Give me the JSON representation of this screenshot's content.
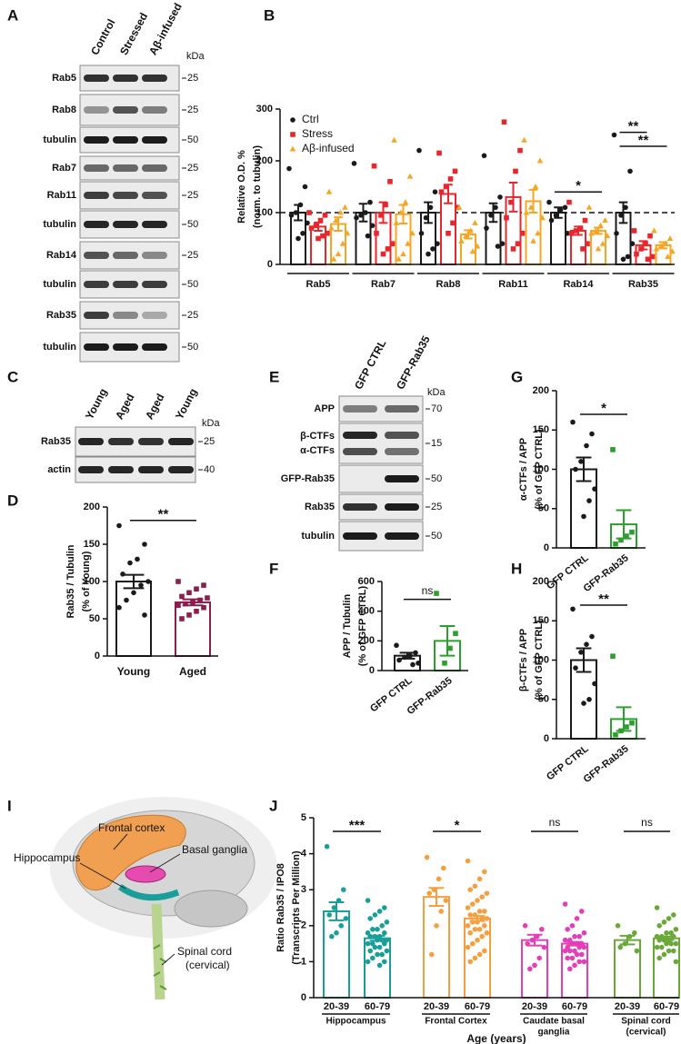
{
  "chart_data": [
    {
      "type": "bar",
      "panel": "B",
      "ylabel": [
        "Relative O.D. %",
        "(norm. to tubulin)"
      ],
      "categories": [
        "Rab5",
        "Rab7",
        "Rab8",
        "Rab11",
        "Rab14",
        "Rab35"
      ],
      "ylim": [
        0,
        300
      ],
      "yticks": [
        0,
        100,
        200,
        300
      ],
      "reference_line": 100,
      "legend": "top-left",
      "series": [
        {
          "name": "Ctrl",
          "color": "#1a1a1a",
          "marker": "circle",
          "values": [
            100,
            100,
            100,
            100,
            100,
            100
          ],
          "errors": [
            15,
            17,
            20,
            18,
            10,
            20
          ],
          "points": [
            [
              185,
              150,
              115,
              100,
              95,
              80,
              60,
              50
            ],
            [
              195,
              120,
              100,
              95,
              90,
              75,
              55
            ],
            [
              220,
              140,
              110,
              90,
              60,
              40,
              30,
              20
            ],
            [
              210,
              130,
              110,
              95,
              70,
              40,
              35
            ],
            [
              120,
              110,
              105,
              95,
              85,
              60
            ],
            [
              250,
              180,
              110,
              95,
              60,
              40,
              15,
              10
            ]
          ]
        },
        {
          "name": "Stress",
          "color": "#e8262d",
          "marker": "square",
          "values": [
            73,
            100,
            136,
            130,
            65,
            37
          ],
          "errors": [
            8,
            20,
            18,
            28,
            8,
            8
          ],
          "points": [
            [
              100,
              95,
              85,
              75,
              70,
              60,
              55,
              50
            ],
            [
              190,
              160,
              115,
              95,
              60,
              40,
              30,
              20
            ],
            [
              215,
              180,
              165,
              150,
              140,
              110,
              80,
              60
            ],
            [
              275,
              220,
              180,
              120,
              90,
              60,
              40,
              30
            ],
            [
              120,
              85,
              70,
              65,
              60,
              40,
              30
            ],
            [
              65,
              55,
              40,
              30,
              20,
              15,
              10
            ]
          ]
        },
        {
          "name": "Aβ-infused",
          "color": "#f5a623",
          "marker": "triangle",
          "values": [
            78,
            97,
            58,
            122,
            65,
            37
          ],
          "errors": [
            13,
            18,
            8,
            22,
            6,
            6
          ],
          "points": [
            [
              140,
              110,
              100,
              85,
              70,
              60,
              40,
              20,
              10
            ],
            [
              240,
              170,
              120,
              100,
              80,
              60,
              40,
              20,
              10
            ],
            [
              110,
              80,
              65,
              55,
              45,
              35,
              25
            ],
            [
              240,
              200,
              150,
              110,
              100,
              90,
              60,
              45
            ],
            [
              110,
              85,
              75,
              65,
              60,
              55,
              40,
              30
            ],
            [
              65,
              50,
              40,
              35,
              30,
              25,
              15
            ]
          ]
        }
      ],
      "significance": [
        {
          "category": 4,
          "pair": [
            0,
            2
          ],
          "label": "*"
        },
        {
          "category": 5,
          "pair": [
            0,
            1
          ],
          "label": "**"
        },
        {
          "category": 5,
          "pair": [
            0,
            2
          ],
          "label": "**"
        }
      ]
    },
    {
      "type": "bar",
      "panel": "D",
      "ylabel": [
        "Rab35 / Tubulin",
        "(% of Young)"
      ],
      "categories": [
        "Young",
        "Aged"
      ],
      "colors": [
        "#1a1a1a",
        "#8c1d4f"
      ],
      "markers": [
        "circle",
        "square"
      ],
      "ylim": [
        0,
        200
      ],
      "yticks": [
        0,
        50,
        100,
        150,
        200
      ],
      "values": [
        100,
        72
      ],
      "errors": [
        9,
        4
      ],
      "points": [
        [
          175,
          150,
          130,
          125,
          110,
          100,
          95,
          85,
          75,
          65,
          55
        ],
        [
          100,
          95,
          90,
          85,
          80,
          78,
          75,
          72,
          70,
          68,
          65,
          60,
          55,
          50
        ]
      ],
      "significance": [
        {
          "pair": [
            0,
            1
          ],
          "label": "**"
        }
      ]
    },
    {
      "type": "bar",
      "panel": "F",
      "ylabel": [
        "APP / Tubulin",
        "(% of GFP CTRL)"
      ],
      "categories": [
        "GFP CTRL",
        "GFP-Rab35"
      ],
      "colors": [
        "#1a1a1a",
        "#2ca02c"
      ],
      "markers": [
        "circle",
        "square"
      ],
      "ylim": [
        0,
        600
      ],
      "yticks": [
        0,
        200,
        400,
        600
      ],
      "values": [
        100,
        200
      ],
      "errors": [
        20,
        100
      ],
      "points": [
        [
          170,
          120,
          100,
          90,
          70,
          50,
          40
        ],
        [
          520,
          250,
          150,
          50
        ]
      ],
      "significance": [
        {
          "pair": [
            0,
            1
          ],
          "label": "ns"
        }
      ]
    },
    {
      "type": "bar",
      "panel": "G",
      "ylabel": [
        "α-CTFs / APP",
        "(% of GFP CTRL)"
      ],
      "categories": [
        "GFP CTRL",
        "GFP-Rab35"
      ],
      "colors": [
        "#1a1a1a",
        "#2ca02c"
      ],
      "markers": [
        "circle",
        "square"
      ],
      "ylim": [
        0,
        200
      ],
      "yticks": [
        0,
        50,
        100,
        150,
        200
      ],
      "values": [
        100,
        30
      ],
      "errors": [
        15,
        18
      ],
      "points": [
        [
          160,
          145,
          130,
          110,
          100,
          75,
          60,
          40
        ],
        [
          125,
          20,
          15,
          10,
          5
        ]
      ],
      "significance": [
        {
          "pair": [
            0,
            1
          ],
          "label": "*"
        }
      ]
    },
    {
      "type": "bar",
      "panel": "H",
      "ylabel": [
        "β-CTFs / APP",
        "(% of GFP CTRL)"
      ],
      "categories": [
        "GFP CTRL",
        "GFP-Rab35"
      ],
      "colors": [
        "#1a1a1a",
        "#2ca02c"
      ],
      "markers": [
        "circle",
        "square"
      ],
      "ylim": [
        0,
        200
      ],
      "yticks": [
        0,
        50,
        100,
        150,
        200
      ],
      "values": [
        100,
        25
      ],
      "errors": [
        15,
        15
      ],
      "points": [
        [
          165,
          130,
          120,
          110,
          90,
          70,
          50,
          45
        ],
        [
          105,
          20,
          15,
          10,
          5
        ]
      ],
      "significance": [
        {
          "pair": [
            0,
            1
          ],
          "label": "**"
        }
      ]
    },
    {
      "type": "bar",
      "panel": "J",
      "ylabel": [
        "Ratio Rab35 / IPO8",
        "(Transcripts Per Million)"
      ],
      "xlabel": "Age (years)",
      "categories": [
        [
          "Hippocampus"
        ],
        [
          "Frontal Cortex"
        ],
        [
          "Caudate basal",
          "ganglia"
        ],
        [
          "Spinal cord",
          "(cervical)"
        ]
      ],
      "subcategories": [
        "20-39",
        "60-79"
      ],
      "colors": [
        "#1a9e9a",
        "#f5a040",
        "#e23fb8",
        "#6aa83a"
      ],
      "markers": [
        "circle",
        "circle",
        "circle",
        "circle"
      ],
      "ylim": [
        0,
        5
      ],
      "yticks": [
        0,
        1,
        2,
        3,
        4,
        5
      ],
      "series": [
        {
          "values": [
            2.4,
            2.8,
            1.6,
            1.6
          ],
          "errors": [
            0.25,
            0.25,
            0.15,
            0.12
          ],
          "points": [
            [
              4.2,
              3.0,
              2.7,
              2.5,
              2.3,
              2.2,
              2.0,
              1.8,
              1.7
            ],
            [
              3.9,
              3.6,
              3.3,
              3.0,
              2.9,
              2.7,
              2.4,
              2.0,
              1.2
            ],
            [
              2.0,
              1.9,
              1.7,
              1.6,
              1.5,
              1.4,
              1.1,
              0.9,
              0.8
            ],
            [
              2.0,
              1.8,
              1.7,
              1.5,
              1.4,
              1.3
            ]
          ]
        },
        {
          "values": [
            1.65,
            2.2,
            1.5,
            1.65
          ],
          "errors": [
            0.07,
            0.07,
            0.05,
            0.05
          ],
          "points": [
            [
              2.7,
              2.5,
              2.4,
              2.3,
              2.2,
              2.1,
              2.0,
              1.9,
              1.9,
              1.8,
              1.8,
              1.7,
              1.7,
              1.7,
              1.6,
              1.6,
              1.6,
              1.5,
              1.5,
              1.5,
              1.4,
              1.4,
              1.3,
              1.3,
              1.2,
              1.2,
              1.1,
              1.0,
              1.0,
              0.9
            ],
            [
              3.8,
              3.5,
              3.3,
              3.1,
              3.0,
              2.9,
              2.8,
              2.7,
              2.6,
              2.5,
              2.4,
              2.4,
              2.3,
              2.3,
              2.2,
              2.2,
              2.1,
              2.1,
              2.0,
              2.0,
              1.9,
              1.9,
              1.8,
              1.8,
              1.7,
              1.6,
              1.5,
              1.4,
              1.3,
              1.2,
              1.1,
              1.0
            ],
            [
              2.6,
              2.4,
              2.2,
              2.0,
              1.9,
              1.8,
              1.7,
              1.7,
              1.6,
              1.6,
              1.5,
              1.5,
              1.5,
              1.4,
              1.4,
              1.4,
              1.3,
              1.3,
              1.3,
              1.2,
              1.2,
              1.1,
              1.1,
              1.0,
              1.0,
              0.9,
              0.8
            ],
            [
              2.5,
              2.3,
              2.2,
              2.1,
              2.0,
              1.9,
              1.8,
              1.8,
              1.7,
              1.7,
              1.7,
              1.6,
              1.6,
              1.6,
              1.5,
              1.5,
              1.5,
              1.4,
              1.4,
              1.3,
              1.3,
              1.2,
              1.1,
              1.0
            ]
          ]
        }
      ],
      "significance": [
        {
          "category": 0,
          "pair": [
            0,
            1
          ],
          "label": "***"
        },
        {
          "category": 1,
          "pair": [
            0,
            1
          ],
          "label": "*"
        },
        {
          "category": 2,
          "pair": [
            0,
            1
          ],
          "label": "ns"
        },
        {
          "category": 3,
          "pair": [
            0,
            1
          ],
          "label": "ns"
        }
      ]
    }
  ],
  "blots": [
    {
      "panel": "A",
      "lanes": [
        "Control",
        "Stressed",
        "Aβ-infused"
      ],
      "unit": "kDa",
      "rows": [
        {
          "label": "Rab5",
          "marker": 25
        },
        {
          "label": "Rab8",
          "marker": 25
        },
        {
          "label": "tubulin",
          "marker": 50
        },
        {
          "label": "Rab7",
          "marker": 25
        },
        {
          "label": "Rab11",
          "marker": 25
        },
        {
          "label": "tubulin",
          "marker": 50
        },
        {
          "label": "Rab14",
          "marker": 25
        },
        {
          "label": "tubulin",
          "marker": 50
        },
        {
          "label": "Rab35",
          "marker": 25
        },
        {
          "label": "tubulin",
          "marker": 50
        }
      ]
    },
    {
      "panel": "C",
      "lanes": [
        "Young",
        "Aged",
        "Aged",
        "Young"
      ],
      "unit": "kDa",
      "rows": [
        {
          "label": "Rab35",
          "marker": 25
        },
        {
          "label": "actin",
          "marker": 40
        }
      ]
    },
    {
      "panel": "E",
      "lanes": [
        "GFP CTRL",
        "GFP-Rab35"
      ],
      "unit": "kDa",
      "rows": [
        {
          "label": "APP",
          "marker": 70
        },
        {
          "label": [
            "β-CTFs",
            "α-CTFs"
          ],
          "marker": 15
        },
        {
          "label": "GFP-Rab35",
          "marker": 50
        },
        {
          "label": "Rab35",
          "marker": 25
        },
        {
          "label": "tubulin",
          "marker": 50
        }
      ]
    }
  ],
  "diagram": {
    "panel": "I",
    "labels": [
      "Frontal cortex",
      "Hippocampus",
      "Basal ganglia",
      "Spinal cord",
      "(cervical)"
    ]
  }
}
